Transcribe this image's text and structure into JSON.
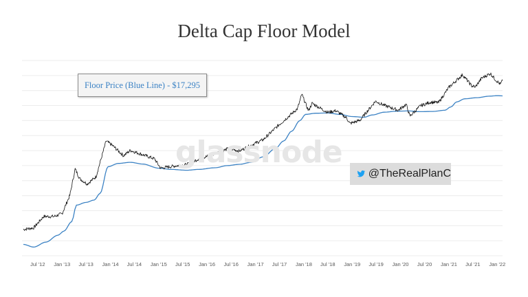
{
  "title": "Delta Cap Floor Model",
  "floor_label": "Floor Price (Blue Line) - $17,295",
  "twitter_handle": "@TheRealPlanC",
  "watermark": "glassnode",
  "icons": {
    "twitter": "twitter-bird-icon"
  },
  "colors": {
    "floor_line": "#3b82c4",
    "price_line": "#111111",
    "grid": "#ececec",
    "label": "#3b82c4",
    "twitter": "#1da1f2"
  },
  "chart_data": {
    "type": "line",
    "title": "Delta Cap Floor Model",
    "xlabel": "",
    "ylabel": "",
    "log_scale_y": true,
    "y_axis_labels_shown": false,
    "x_ticks": [
      "Jul '12",
      "Jan '13",
      "Jul '13",
      "Jan '14",
      "Jul '14",
      "Jan '15",
      "Jul '15",
      "Jan '16",
      "Jul '16",
      "Jan '17",
      "Jul '17",
      "Jan '18",
      "Jul '18",
      "Jan '19",
      "Jul '19",
      "Jan '20",
      "Jul '20",
      "Jan '21",
      "Jul '21",
      "Jan '22"
    ],
    "x_range": [
      "2012-03-15",
      "2022-02-10"
    ],
    "grid": "horizontal",
    "series": [
      {
        "role": "price",
        "color": "#111111",
        "points": [
          [
            "2012-03-15",
            5
          ],
          [
            "2012-06-01",
            5.5
          ],
          [
            "2012-08-15",
            11
          ],
          [
            "2012-11-01",
            11
          ],
          [
            "2013-01-01",
            13
          ],
          [
            "2013-03-01",
            40
          ],
          [
            "2013-04-10",
            200
          ],
          [
            "2013-05-15",
            110
          ],
          [
            "2013-07-10",
            80
          ],
          [
            "2013-09-15",
            125
          ],
          [
            "2013-11-30",
            1100
          ],
          [
            "2014-01-15",
            850
          ],
          [
            "2014-04-10",
            450
          ],
          [
            "2014-06-01",
            620
          ],
          [
            "2014-09-01",
            480
          ],
          [
            "2014-12-01",
            370
          ],
          [
            "2015-01-15",
            210
          ],
          [
            "2015-05-01",
            240
          ],
          [
            "2015-08-01",
            260
          ],
          [
            "2015-11-05",
            380
          ],
          [
            "2016-01-01",
            430
          ],
          [
            "2016-06-15",
            700
          ],
          [
            "2016-09-01",
            600
          ],
          [
            "2016-12-31",
            960
          ],
          [
            "2017-03-01",
            1200
          ],
          [
            "2017-06-15",
            2700
          ],
          [
            "2017-09-01",
            4700
          ],
          [
            "2017-11-15",
            8000
          ],
          [
            "2017-12-17",
            19000
          ],
          [
            "2018-02-05",
            7000
          ],
          [
            "2018-03-05",
            11000
          ],
          [
            "2018-06-30",
            6300
          ],
          [
            "2018-09-01",
            7000
          ],
          [
            "2018-11-20",
            4500
          ],
          [
            "2018-12-15",
            3200
          ],
          [
            "2019-03-01",
            3900
          ],
          [
            "2019-06-26",
            12500
          ],
          [
            "2019-09-01",
            9700
          ],
          [
            "2019-12-15",
            7200
          ],
          [
            "2020-02-13",
            10300
          ],
          [
            "2020-03-12",
            5000
          ],
          [
            "2020-06-01",
            9500
          ],
          [
            "2020-08-15",
            11800
          ],
          [
            "2020-10-15",
            11500
          ],
          [
            "2020-12-31",
            29000
          ],
          [
            "2021-04-14",
            63000
          ],
          [
            "2021-06-22",
            32000
          ],
          [
            "2021-07-20",
            30000
          ],
          [
            "2021-09-05",
            51000
          ],
          [
            "2021-11-10",
            68000
          ],
          [
            "2021-12-15",
            48000
          ],
          [
            "2022-01-24",
            35000
          ],
          [
            "2022-02-10",
            44000
          ]
        ]
      },
      {
        "role": "floor",
        "color": "#3b82c4",
        "points": [
          [
            "2012-03-15",
            2.0
          ],
          [
            "2012-06-01",
            1.7
          ],
          [
            "2012-09-01",
            2.3
          ],
          [
            "2012-12-01",
            3.5
          ],
          [
            "2013-01-15",
            4.5
          ],
          [
            "2013-03-15",
            8
          ],
          [
            "2013-04-20",
            22
          ],
          [
            "2013-07-01",
            26
          ],
          [
            "2013-09-01",
            30
          ],
          [
            "2013-10-15",
            45
          ],
          [
            "2013-12-15",
            230
          ],
          [
            "2014-03-01",
            280
          ],
          [
            "2014-06-01",
            300
          ],
          [
            "2014-09-01",
            270
          ],
          [
            "2015-01-01",
            210
          ],
          [
            "2015-04-01",
            195
          ],
          [
            "2015-08-01",
            185
          ],
          [
            "2015-11-01",
            195
          ],
          [
            "2016-03-01",
            215
          ],
          [
            "2016-06-01",
            245
          ],
          [
            "2016-09-01",
            265
          ],
          [
            "2016-12-01",
            300
          ],
          [
            "2017-03-01",
            420
          ],
          [
            "2017-06-01",
            700
          ],
          [
            "2017-08-01",
            1100
          ],
          [
            "2017-10-01",
            2000
          ],
          [
            "2017-12-01",
            3800
          ],
          [
            "2018-01-15",
            5600
          ],
          [
            "2018-04-01",
            6000
          ],
          [
            "2018-07-01",
            6100
          ],
          [
            "2018-10-01",
            5600
          ],
          [
            "2019-01-01",
            4900
          ],
          [
            "2019-04-01",
            4700
          ],
          [
            "2019-06-01",
            5400
          ],
          [
            "2019-09-01",
            6400
          ],
          [
            "2019-12-01",
            6800
          ],
          [
            "2020-03-01",
            6900
          ],
          [
            "2020-06-01",
            6600
          ],
          [
            "2020-09-01",
            6700
          ],
          [
            "2020-12-01",
            7200
          ],
          [
            "2021-01-15",
            8800
          ],
          [
            "2021-03-01",
            12000
          ],
          [
            "2021-05-01",
            14500
          ],
          [
            "2021-08-01",
            15500
          ],
          [
            "2021-11-01",
            17000
          ],
          [
            "2022-01-01",
            17500
          ],
          [
            "2022-02-10",
            17295
          ]
        ]
      }
    ]
  }
}
